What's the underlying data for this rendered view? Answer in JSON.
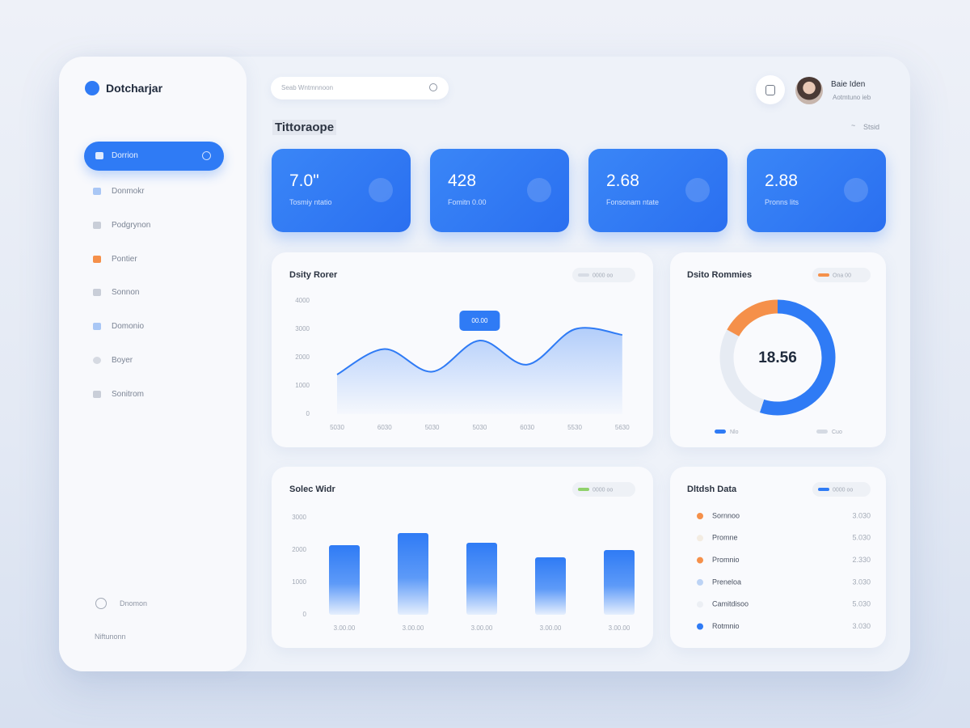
{
  "sidebar": {
    "brand": "Dotcharjar",
    "items": [
      "Dorrion",
      "Donmokr",
      "Podgrynon",
      "Pontier",
      "Sonnon",
      "Domonio",
      "Boyer",
      "Sonitrom"
    ],
    "footer_item": "Dnomon",
    "footer_note": "Niftunonn"
  },
  "header": {
    "search_placeholder": "Seab Wntmnnoon",
    "user_name": "Baie Iden",
    "user_sub": "Aotmtuno ieb",
    "title": "Tittoraope",
    "link": "Stsid"
  },
  "kpis": [
    {
      "value": "7.0\"",
      "label": "Tosmiy ntatio"
    },
    {
      "value": "428",
      "label": "Fomitn 0.00"
    },
    {
      "value": "2.68",
      "label": "Fonsonam ntate"
    },
    {
      "value": "2.88",
      "label": "Pronns lits"
    }
  ],
  "line_chart": {
    "type": "line",
    "title": "Dsity Rorer",
    "legend": "0000 oo",
    "categories": [
      "5030",
      "6030",
      "5030",
      "5030",
      "6030",
      "5530",
      "5630"
    ],
    "values": [
      1400,
      2300,
      1500,
      2600,
      1750,
      3000,
      2800
    ],
    "color": "#2f7bf5",
    "ylim": [
      0,
      4000
    ],
    "yticks": [
      0,
      1000,
      2000,
      3000,
      4000
    ],
    "tooltip": "00.00"
  },
  "donut_chart": {
    "type": "pie",
    "title": "Dsito Rommies",
    "center_label": "18.56",
    "series": [
      {
        "name": "Nlo",
        "color": "#2f7bf5",
        "value": 55
      },
      {
        "name": "Cuo",
        "color": "#e6ebf3",
        "value": 28
      },
      {
        "name": "Ona 00",
        "color": "#f5904a",
        "value": 17
      }
    ]
  },
  "bar_chart": {
    "type": "bar",
    "title": "Solec Widr",
    "legend": "0000 oo",
    "categories": [
      "3.00.00",
      "3.00.00",
      "3.00.00",
      "3.00.00",
      "3.00.00"
    ],
    "values": [
      2150,
      2525,
      2225,
      1775,
      2000
    ],
    "color": "#2f7bf5",
    "ylim": [
      0,
      3000
    ],
    "yticks": [
      0,
      1000,
      2000,
      3000
    ]
  },
  "detail_list": {
    "title": "Dltdsh Data",
    "rows": [
      {
        "name": "Sornnoo",
        "value": "3.030",
        "color": "#f5904a"
      },
      {
        "name": "Promne",
        "value": "5.030",
        "color": "#f3ece2"
      },
      {
        "name": "Promnio",
        "value": "2.330",
        "color": "#f5904a"
      },
      {
        "name": "Preneloa",
        "value": "3.030",
        "color": "#bcd3f5"
      },
      {
        "name": "Camitdisoo",
        "value": "5.030",
        "color": "#eceff4"
      },
      {
        "name": "Rotmnio",
        "value": "3.030",
        "color": "#2f7bf5"
      }
    ]
  }
}
